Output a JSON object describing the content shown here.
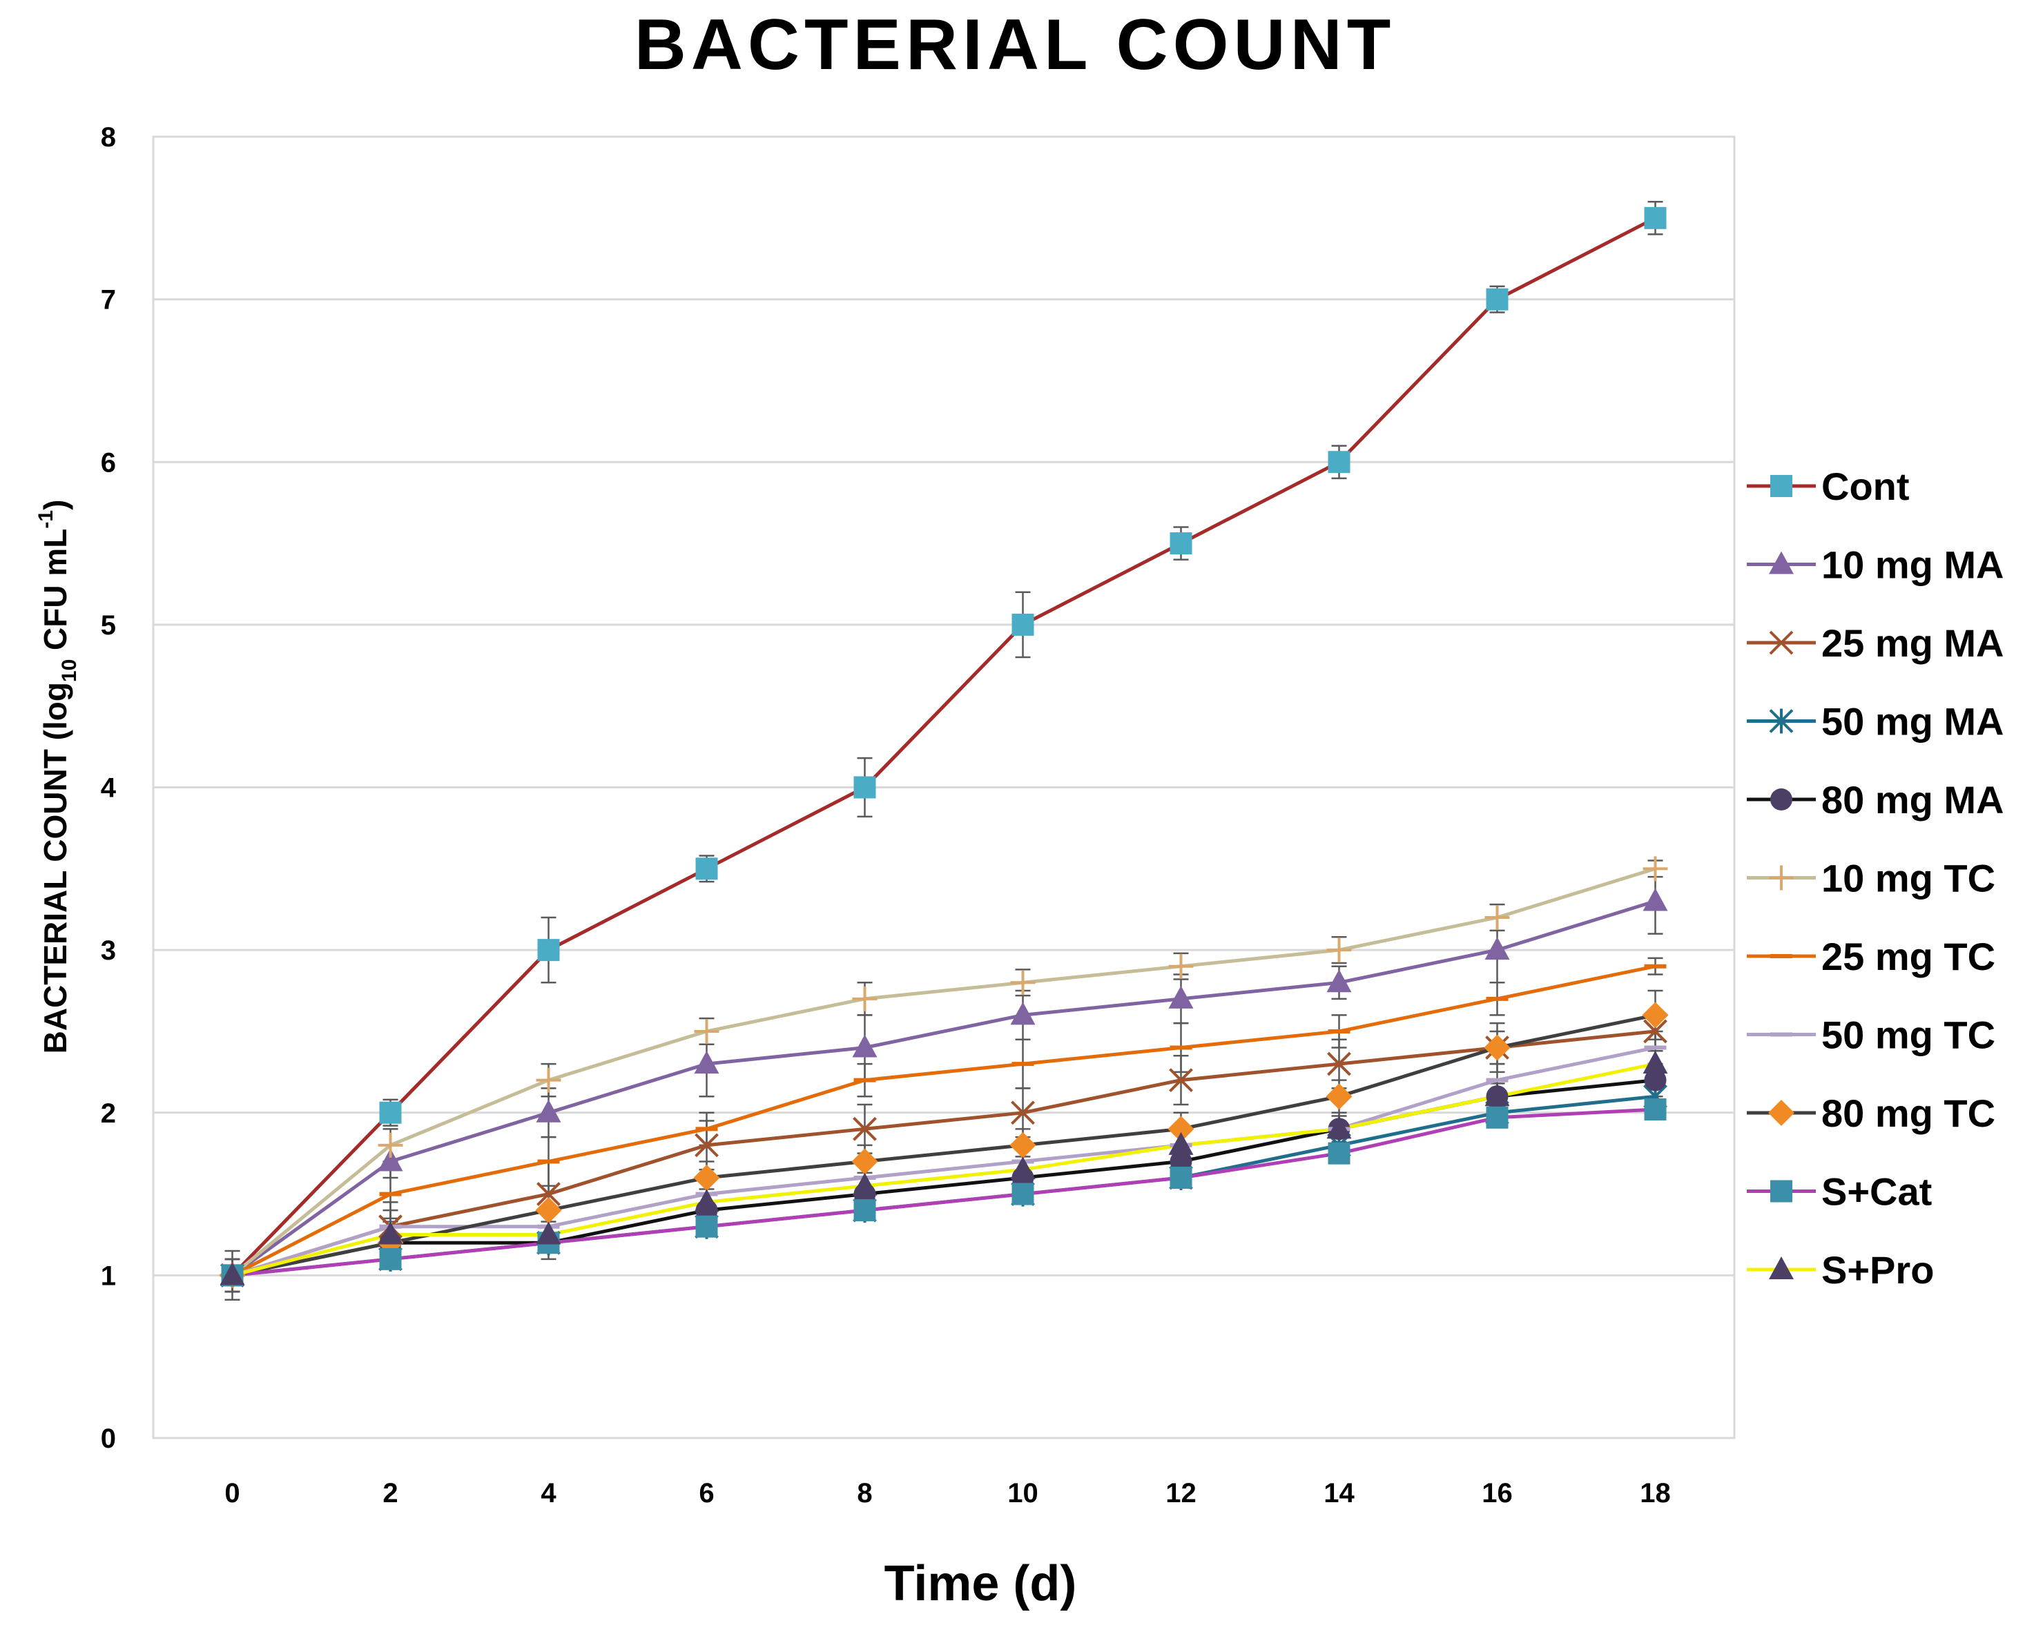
{
  "chart_data": {
    "type": "line",
    "title": "BACTERIAL COUNT",
    "xlabel": "Time (d)",
    "ylabel": {
      "prefix": "BACTERIAL COUNT  (log",
      "subscript": "10",
      "unit": " CFU mL",
      "superscript": "-1",
      "suffix": ")"
    },
    "x": [
      0,
      2,
      4,
      6,
      8,
      10,
      12,
      14,
      16,
      18
    ],
    "xticks": [
      "0",
      "2",
      "4",
      "6",
      "8",
      "10",
      "12",
      "14",
      "16",
      "18"
    ],
    "yticks": [
      "0",
      "1",
      "2",
      "3",
      "4",
      "5",
      "6",
      "7",
      "8"
    ],
    "xlim": [
      -1,
      19
    ],
    "ylim": [
      0,
      8
    ],
    "grid": "horizontal",
    "legend_position": "right",
    "series": [
      {
        "name": "Cont",
        "color": "#A52A2A",
        "marker": "square",
        "marker_color": "#4BACC6",
        "values": [
          1.0,
          2.0,
          3.0,
          3.5,
          4.0,
          5.0,
          5.5,
          6.0,
          7.0,
          7.5
        ],
        "errors": [
          0.1,
          0.08,
          0.2,
          0.08,
          0.18,
          0.2,
          0.1,
          0.1,
          0.08,
          0.1
        ]
      },
      {
        "name": "10 mg MA",
        "color": "#8064A2",
        "marker": "triangle",
        "marker_color": "#8064A2",
        "values": [
          1.0,
          1.7,
          2.0,
          2.3,
          2.4,
          2.6,
          2.7,
          2.8,
          3.0,
          3.3
        ],
        "errors": [
          0.1,
          0.1,
          0.15,
          0.2,
          0.2,
          0.15,
          0.15,
          0.1,
          0.2,
          0.2
        ]
      },
      {
        "name": "25 mg MA",
        "color": "#A0522D",
        "marker": "x",
        "marker_color": "#A0522D",
        "values": [
          1.0,
          1.3,
          1.5,
          1.8,
          1.9,
          2.0,
          2.2,
          2.3,
          2.4,
          2.5
        ],
        "errors": [
          0.15,
          0.15,
          0.2,
          0.15,
          0.15,
          0.15,
          0.15,
          0.15,
          0.1,
          0.1
        ]
      },
      {
        "name": "50 mg MA",
        "color": "#1F6E8C",
        "marker": "star",
        "marker_color": "#1F6E8C",
        "values": [
          1.0,
          1.1,
          1.2,
          1.3,
          1.4,
          1.5,
          1.6,
          1.8,
          2.0,
          2.1
        ],
        "errors": [
          0.05,
          0.05,
          0.05,
          0.05,
          0.05,
          0.05,
          0.05,
          0.05,
          0.05,
          0.05
        ]
      },
      {
        "name": "80 mg MA",
        "color": "#111111",
        "marker": "circle",
        "marker_color": "#4B3F66",
        "values": [
          1.0,
          1.2,
          1.2,
          1.4,
          1.5,
          1.6,
          1.7,
          1.9,
          2.1,
          2.2
        ],
        "errors": [
          0.1,
          0.1,
          0.1,
          0.1,
          0.1,
          0.1,
          0.1,
          0.1,
          0.1,
          0.1
        ]
      },
      {
        "name": "10 mg TC",
        "color": "#C4BD97",
        "marker": "plus",
        "marker_color": "#D9A86C",
        "values": [
          1.0,
          1.8,
          2.2,
          2.5,
          2.7,
          2.8,
          2.9,
          3.0,
          3.2,
          3.5
        ],
        "errors": [
          0.1,
          0.1,
          0.1,
          0.08,
          0.1,
          0.08,
          0.08,
          0.08,
          0.08,
          0.05
        ]
      },
      {
        "name": "25 mg TC",
        "color": "#E36C09",
        "marker": "dash",
        "marker_color": "#E36C09",
        "values": [
          1.0,
          1.5,
          1.7,
          1.9,
          2.2,
          2.3,
          2.4,
          2.5,
          2.7,
          2.9
        ],
        "errors": [
          0.1,
          0.15,
          0.15,
          0.1,
          0.1,
          0.15,
          0.15,
          0.1,
          0.1,
          0.05
        ]
      },
      {
        "name": "50 mg TC",
        "color": "#B1A0C7",
        "marker": "dash",
        "marker_color": "#B1A0C7",
        "values": [
          1.0,
          1.3,
          1.3,
          1.5,
          1.6,
          1.7,
          1.8,
          1.9,
          2.2,
          2.4
        ],
        "errors": [
          0.1,
          0.1,
          0.1,
          0.1,
          0.1,
          0.1,
          0.1,
          0.1,
          0.1,
          0.1
        ]
      },
      {
        "name": "80 mg TC",
        "color": "#3F3F3F",
        "marker": "diamond",
        "marker_color": "#F08A24",
        "values": [
          1.0,
          1.2,
          1.4,
          1.6,
          1.7,
          1.8,
          1.9,
          2.1,
          2.4,
          2.6
        ],
        "errors": [
          0.1,
          0.1,
          0.15,
          0.1,
          0.1,
          0.1,
          0.1,
          0.1,
          0.15,
          0.15
        ]
      },
      {
        "name": "S+Cat",
        "color": "#B03FB5",
        "marker": "square",
        "marker_color": "#3C8FA8",
        "values": [
          1.0,
          1.1,
          1.2,
          1.3,
          1.4,
          1.5,
          1.6,
          1.75,
          1.97,
          2.02
        ],
        "errors": [
          0.1,
          0.05,
          0.05,
          0.05,
          0.05,
          0.05,
          0.05,
          0.05,
          0.05,
          0.05
        ]
      },
      {
        "name": "S+Pro",
        "color": "#F2F200",
        "marker": "triangle",
        "marker_color": "#4B3F66",
        "values": [
          1.0,
          1.25,
          1.25,
          1.45,
          1.55,
          1.65,
          1.8,
          1.9,
          2.1,
          2.3
        ],
        "errors": [
          0.1,
          0.08,
          0.08,
          0.08,
          0.08,
          0.08,
          0.08,
          0.08,
          0.08,
          0.08
        ]
      }
    ]
  }
}
